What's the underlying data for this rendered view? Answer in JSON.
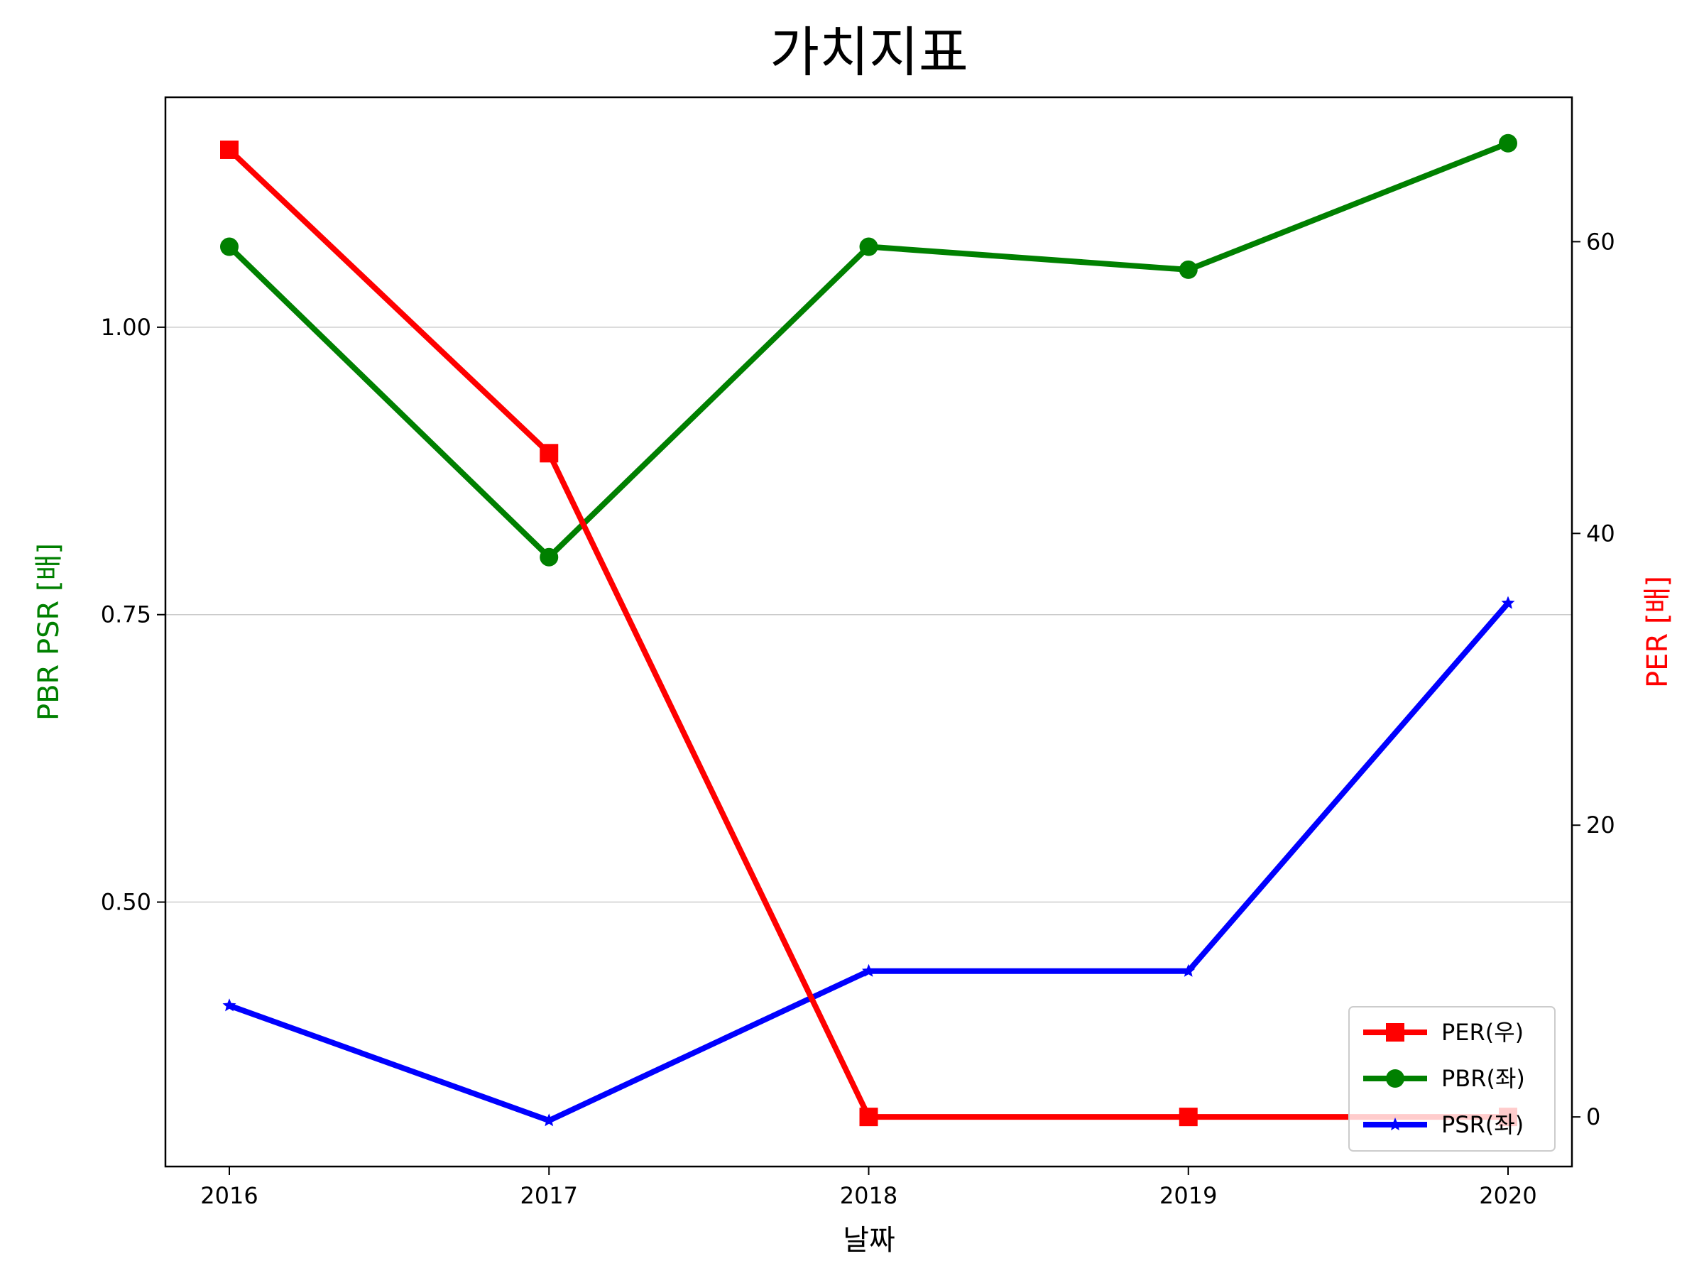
{
  "chart_data": {
    "type": "line",
    "title": "가치지표",
    "xlabel": "날짜",
    "ylabel_left": "PBR PSR [배]",
    "ylabel_right": "PER [배]",
    "categories": [
      "2016",
      "2017",
      "2018",
      "2019",
      "2020"
    ],
    "y_left": {
      "ticks": [
        "0.50",
        "0.75",
        "1.00"
      ],
      "tick_values": [
        0.5,
        0.75,
        1.0
      ],
      "range": [
        0.27,
        1.2
      ],
      "grid": true
    },
    "y_right": {
      "ticks": [
        "0",
        "20",
        "40",
        "60"
      ],
      "tick_values": [
        0,
        20,
        40,
        60
      ],
      "range": [
        -3.4,
        69.9
      ]
    },
    "series": [
      {
        "name": "PER(우)",
        "axis": "right",
        "color": "#ff0000",
        "marker": "square",
        "values": [
          66.3,
          45.5,
          0,
          0,
          0
        ]
      },
      {
        "name": "PBR(좌)",
        "axis": "left",
        "color": "#008000",
        "marker": "circle",
        "values": [
          1.07,
          0.8,
          1.07,
          1.05,
          1.16
        ]
      },
      {
        "name": "PSR(좌)",
        "axis": "left",
        "color": "#0000ff",
        "marker": "star",
        "values": [
          0.41,
          0.31,
          0.44,
          0.44,
          0.76
        ]
      }
    ],
    "legend_position": "lower right"
  }
}
